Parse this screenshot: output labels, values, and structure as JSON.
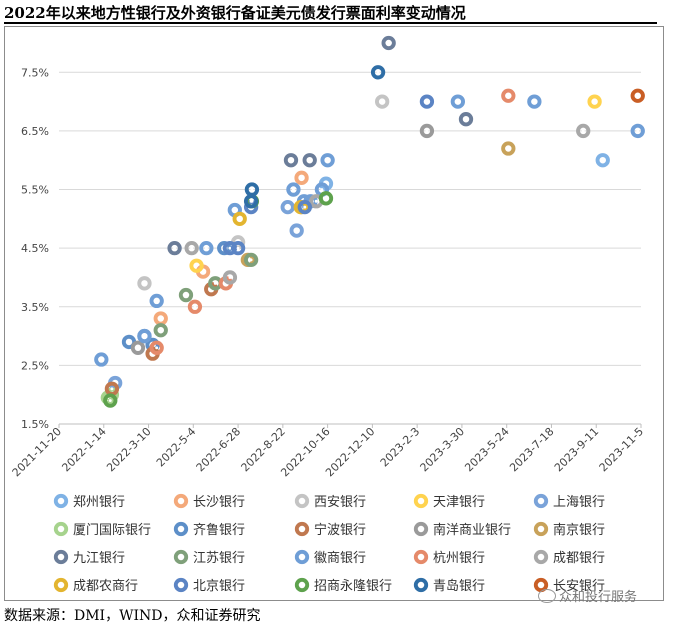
{
  "title": "2022年以来地方性银行及外资银行备证美元债发行票面利率变动情况",
  "source": "数据来源：DMI，WIND，众和证券研究",
  "watermark": "众和投行服务",
  "watermark_icon": "wechat-icon",
  "chart_data": {
    "type": "scatter",
    "title": "",
    "xlabel": "",
    "ylabel": "",
    "x_ticks": [
      "2021-11-20",
      "2022-1-14",
      "2022-3-10",
      "2022-5-4",
      "2022-6-28",
      "2022-8-22",
      "2022-10-16",
      "2022-12-10",
      "2023-2-3",
      "2023-3-30",
      "2023-5-24",
      "2023-7-18",
      "2023-9-11",
      "2023-11-5"
    ],
    "xlim": [
      "2021-11-20",
      "2023-11-05"
    ],
    "y_ticks": [
      "1.5%",
      "2.5%",
      "3.5%",
      "4.5%",
      "5.5%",
      "6.5%",
      "7.5%"
    ],
    "ylim": [
      1.5,
      8.0
    ],
    "grid": "horizontal",
    "legend_position": "bottom",
    "series": [
      {
        "name": "郑州银行",
        "color": "#7fb2e5",
        "points": [
          [
            "2022-10-14",
            5.6
          ],
          [
            "2023-9-19",
            6.0
          ]
        ]
      },
      {
        "name": "长沙银行",
        "color": "#f4a97a",
        "points": [
          [
            "2022-9-14",
            5.7
          ],
          [
            "2022-5-16",
            4.1
          ],
          [
            "2022-3-25",
            3.3
          ]
        ]
      },
      {
        "name": "西安银行",
        "color": "#c4c4c4",
        "points": [
          [
            "2022-12-22",
            7.0
          ],
          [
            "2022-3-5",
            3.9
          ],
          [
            "2022-6-28",
            4.6
          ]
        ]
      },
      {
        "name": "天津银行",
        "color": "#ffd34f",
        "points": [
          [
            "2023-9-9",
            7.0
          ],
          [
            "2022-5-8",
            4.2
          ]
        ]
      },
      {
        "name": "上海银行",
        "color": "#7aa3d9",
        "points": [
          [
            "2022-9-8",
            4.8
          ],
          [
            "2022-1-28",
            2.2
          ],
          [
            "2022-8-28",
            5.2
          ]
        ]
      },
      {
        "name": "厦门国际银行",
        "color": "#a6d38d",
        "points": [
          [
            "2022-1-24",
            2.0
          ],
          [
            "2022-1-19",
            1.95
          ]
        ]
      },
      {
        "name": "齐鲁银行",
        "color": "#5d8fc8",
        "points": [
          [
            "2022-3-5",
            3.0
          ],
          [
            "2022-6-11",
            4.5
          ],
          [
            "2022-2-14",
            2.9
          ],
          [
            "2022-3-15",
            2.85
          ]
        ]
      },
      {
        "name": "宁波银行",
        "color": "#c0784f",
        "points": [
          [
            "2022-3-15",
            2.7
          ],
          [
            "2022-5-26",
            3.8
          ],
          [
            "2022-1-24",
            2.1
          ]
        ]
      },
      {
        "name": "南洋商业银行",
        "color": "#9a9a9a",
        "points": [
          [
            "2022-2-25",
            2.8
          ],
          [
            "2023-2-15",
            6.5
          ]
        ]
      },
      {
        "name": "南京银行",
        "color": "#c8a25a",
        "points": [
          [
            "2022-7-10",
            4.3
          ],
          [
            "2022-9-14",
            5.2
          ],
          [
            "2023-5-26",
            6.2
          ]
        ]
      },
      {
        "name": "九江银行",
        "color": "#6b7d99",
        "points": [
          [
            "2022-4-11",
            4.5
          ],
          [
            "2022-12-30",
            8.0
          ],
          [
            "2022-9-24",
            6.0
          ],
          [
            "2022-9-1",
            6.0
          ],
          [
            "2023-4-4",
            6.7
          ]
        ]
      },
      {
        "name": "江苏银行",
        "color": "#7fa07a",
        "points": [
          [
            "2022-3-25",
            3.1
          ],
          [
            "2022-4-25",
            3.7
          ],
          [
            "2022-5-31",
            3.9
          ],
          [
            "2022-7-14",
            4.3
          ]
        ]
      },
      {
        "name": "徽商银行",
        "color": "#6f9ed6",
        "points": [
          [
            "2022-1-11",
            2.6
          ],
          [
            "2022-3-5",
            3.0
          ],
          [
            "2022-3-20",
            3.6
          ],
          [
            "2022-5-20",
            4.5
          ],
          [
            "2022-6-24",
            5.15
          ],
          [
            "2022-9-4",
            5.5
          ],
          [
            "2022-9-17",
            5.3
          ],
          [
            "2022-10-9",
            5.5
          ],
          [
            "2022-10-16",
            6.0
          ],
          [
            "2022-9-25",
            5.3
          ],
          [
            "2023-3-25",
            7.0
          ],
          [
            "2023-6-27",
            7.0
          ],
          [
            "2023-11-1",
            6.5
          ]
        ]
      },
      {
        "name": "杭州银行",
        "color": "#e58a6a",
        "points": [
          [
            "2022-3-20",
            2.8
          ],
          [
            "2022-5-6",
            3.5
          ],
          [
            "2022-6-13",
            3.9
          ],
          [
            "2023-5-26",
            7.1
          ]
        ]
      },
      {
        "name": "成都银行",
        "color": "#a8a8a8",
        "points": [
          [
            "2022-5-2",
            4.5
          ],
          [
            "2022-6-18",
            4.0
          ],
          [
            "2022-10-2",
            5.3
          ],
          [
            "2023-8-26",
            6.5
          ]
        ]
      },
      {
        "name": "成都农商行",
        "color": "#e3b530",
        "points": [
          [
            "2022-6-30",
            5.0
          ],
          [
            "2022-9-13",
            5.2
          ]
        ]
      },
      {
        "name": "北京银行",
        "color": "#5b84c4",
        "points": [
          [
            "2022-6-18",
            4.5
          ],
          [
            "2022-6-28",
            4.5
          ],
          [
            "2022-7-14",
            5.2
          ],
          [
            "2022-9-18",
            5.2
          ],
          [
            "2023-2-15",
            7.0
          ]
        ]
      },
      {
        "name": "招商永隆银行",
        "color": "#5ea24d",
        "points": [
          [
            "2022-7-15",
            5.3
          ],
          [
            "2022-10-14",
            5.35
          ],
          [
            "2022-1-22",
            1.9
          ]
        ]
      },
      {
        "name": "青岛银行",
        "color": "#2f6ea6",
        "points": [
          [
            "2022-7-15",
            5.5
          ],
          [
            "2022-7-14",
            5.3
          ],
          [
            "2022-12-17",
            7.5
          ]
        ]
      },
      {
        "name": "长安银行",
        "color": "#c95e25",
        "points": [
          [
            "2023-11-1",
            7.1
          ]
        ]
      }
    ]
  }
}
